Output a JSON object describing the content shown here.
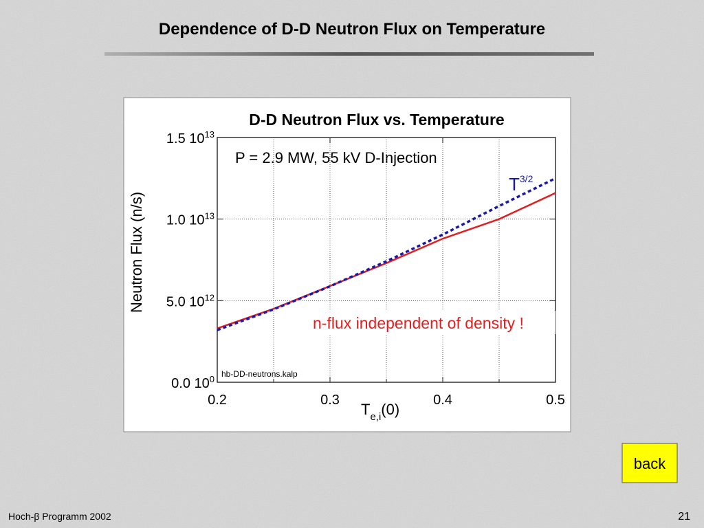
{
  "slide_title": "Dependence of D-D Neutron Flux on Temperature",
  "chart_data": {
    "type": "line",
    "title": "D-D Neutron Flux vs. Temperature",
    "subtitle": "P = 2.9 MW,  55 kV D-Injection",
    "x_label": {
      "main": "T",
      "sub": "e,i",
      "tail": "(0)"
    },
    "y_label": "Neutron Flux (n/s)",
    "x": [
      0.2,
      0.25,
      0.3,
      0.35,
      0.4,
      0.45,
      0.5
    ],
    "series": [
      {
        "color": "#e02020",
        "style": "solid",
        "values": [
          3300000000000,
          4500000000000,
          5900000000000,
          7300000000000,
          8800000000000,
          10000000000000,
          11600000000000
        ]
      },
      {
        "name": "T",
        "name_sup": "3/2",
        "color": "#1a1aaa",
        "style": "dotted",
        "values": [
          3200000000000,
          4470000000000,
          5880000000000,
          7410000000000,
          9050000000000,
          10800000000000,
          12500000000000
        ]
      }
    ],
    "annotations": [
      "n-flux independent of density !",
      "hb-DD-neutrons.kalp"
    ],
    "xlim": [
      0.2,
      0.5
    ],
    "xticks": [
      0.2,
      0.3,
      0.4,
      0.5
    ],
    "xminorticks": [
      0.25,
      0.35,
      0.45
    ],
    "ylim": [
      0,
      15000000000000
    ],
    "yticks": [
      {
        "value": 0,
        "label": "0.0 10",
        "label_exp": "0"
      },
      {
        "value": 5000000000000,
        "label": "5.0 10",
        "label_exp": "12"
      },
      {
        "value": 10000000000000,
        "label": "1.0 10",
        "label_exp": "13"
      },
      {
        "value": 15000000000000,
        "label": "1.5 10",
        "label_exp": "13"
      }
    ],
    "grid": true
  },
  "button": "back",
  "footer": "Hoch-β Programm 2002",
  "page_number": "21"
}
